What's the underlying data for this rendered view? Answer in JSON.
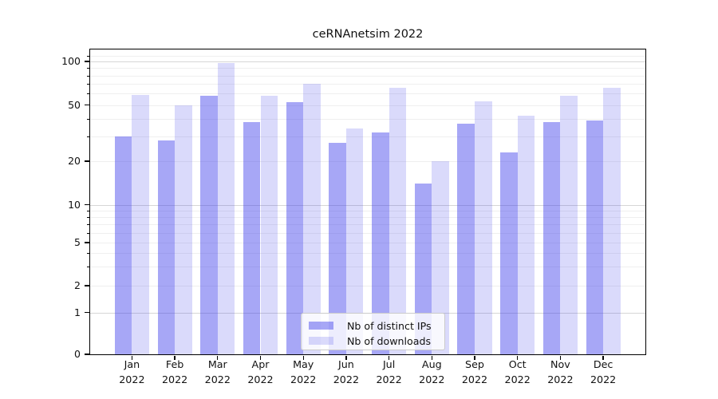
{
  "title": "ceRNAnetsim 2022",
  "chart_data": {
    "type": "bar",
    "categories": [
      "Jan 2022",
      "Feb 2022",
      "Mar 2022",
      "Apr 2022",
      "May 2022",
      "Jun 2022",
      "Jul 2022",
      "Aug 2022",
      "Sep 2022",
      "Oct 2022",
      "Nov 2022",
      "Dec 2022"
    ],
    "series": [
      {
        "name": "Nb of distinct IPs",
        "values": [
          30,
          28,
          58,
          38,
          52,
          27,
          32,
          14,
          37,
          23,
          38,
          39
        ],
        "color": "#3c3ceb",
        "alpha": 0.45
      },
      {
        "name": "Nb of downloads",
        "values": [
          59,
          50,
          98,
          58,
          70,
          34,
          66,
          20,
          53,
          42,
          58,
          66
        ],
        "color": "#3c3ceb",
        "alpha": 0.19
      }
    ],
    "title": "ceRNAnetsim 2022",
    "xlabel": "",
    "ylabel": "",
    "yscale": "symlog",
    "ylim": [
      0,
      121
    ],
    "yticks": [
      100,
      50,
      20,
      10,
      5,
      2,
      1,
      0
    ],
    "minor_gridlines": [
      110,
      90,
      80,
      70,
      60,
      50,
      40,
      30,
      20,
      9,
      8,
      7,
      6,
      5,
      4,
      3,
      2
    ],
    "major_gridlines": [
      100,
      10,
      1
    ],
    "grid": true,
    "legend_position": "lower center"
  },
  "colors": {
    "bar_base": "#3c3ceb",
    "major_grid": "#d6d6d6",
    "minor_grid": "#efefef",
    "spine": "#000000",
    "text": "#111111",
    "legend_border": "#cbcbcb"
  }
}
